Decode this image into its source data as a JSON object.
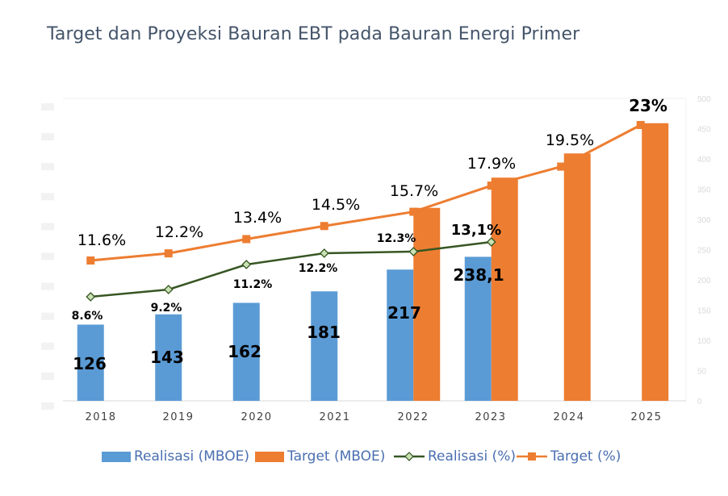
{
  "title": "Target dan Proyeksi Bauran EBT pada Bauran Energi Primer",
  "colors": {
    "realisasi_bar": "#5b9bd5",
    "target_bar": "#ed7d31",
    "realisasi_line": "#375623",
    "target_line": "#ed7d31",
    "title": "#44546a",
    "axis_text": "#d9d9d9"
  },
  "chart_data": {
    "type": "bar",
    "categories": [
      "2018",
      "2019",
      "2020",
      "2021",
      "2022",
      "2023",
      "2024",
      "2025"
    ],
    "right_axis": {
      "ylim": [
        0,
        500
      ],
      "ticks": [
        "0",
        "50",
        "100",
        "150",
        "200",
        "250",
        "300",
        "350",
        "400",
        "450",
        "500"
      ]
    },
    "series": [
      {
        "name": "Realisasi (MBOE)",
        "kind": "bar",
        "axis": "right",
        "values": [
          126,
          143,
          162,
          181,
          217,
          238.1,
          null,
          null
        ],
        "labels": [
          "126",
          "143",
          "162",
          "181",
          "217",
          "238,1",
          "",
          ""
        ]
      },
      {
        "name": "Target (MBOE)",
        "kind": "bar",
        "axis": "right",
        "values": [
          null,
          null,
          null,
          null,
          319,
          369,
          409,
          459
        ],
        "labels": [
          "",
          "",
          "",
          "",
          "",
          "",
          "",
          ""
        ]
      },
      {
        "name": "Realisasi (%)",
        "kind": "line",
        "marker": "diamond",
        "values": [
          8.6,
          9.2,
          11.2,
          12.2,
          12.3,
          13.1,
          null,
          null
        ],
        "labels": [
          "8.6%",
          "9.2%",
          "11.2%",
          "12.2%",
          "12.3%",
          "13,1%",
          "",
          ""
        ]
      },
      {
        "name": "Target (%)",
        "kind": "line",
        "marker": "square",
        "values": [
          11.6,
          12.2,
          13.4,
          14.5,
          15.7,
          17.9,
          19.5,
          23
        ],
        "labels": [
          "11.6%",
          "12.2%",
          "13.4%",
          "14.5%",
          "15.7%",
          "17.9%",
          "19.5%",
          "23%"
        ]
      }
    ],
    "legend": "bottom",
    "grid": false
  },
  "legend": {
    "items": [
      "Realisasi (MBOE)",
      "Target (MBOE)",
      "Realisasi (%)",
      "Target (%)"
    ]
  }
}
